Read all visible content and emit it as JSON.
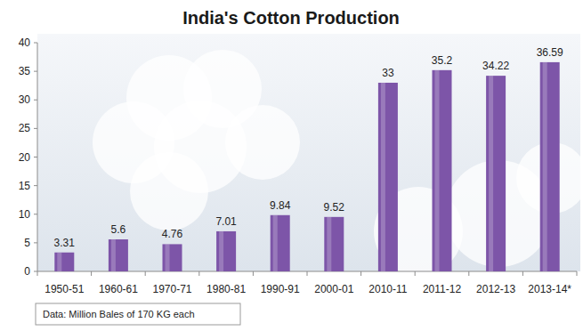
{
  "chart_data": {
    "type": "bar",
    "title": "India's Cotton Production",
    "categories": [
      "1950-51",
      "1960-61",
      "1970-71",
      "1980-81",
      "1990-91",
      "2000-01",
      "2010-11",
      "2011-12",
      "2012-13",
      "2013-14*"
    ],
    "values": [
      3.31,
      5.6,
      4.76,
      7.01,
      9.84,
      9.52,
      33,
      35.2,
      34.22,
      36.59
    ],
    "color": "#7d55a8",
    "ylim": [
      0,
      40
    ],
    "yticks": [
      0,
      5,
      10,
      15,
      20,
      25,
      30,
      35,
      40
    ],
    "grid": false,
    "data_labels": true,
    "annotations": [
      "Data: Million Bales of 170 KG each"
    ]
  }
}
